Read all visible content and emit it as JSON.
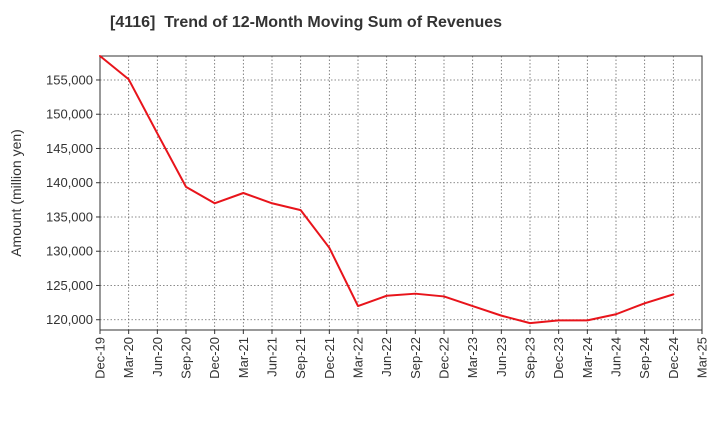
{
  "chart_data": {
    "type": "line",
    "title": "[4116]  Trend of 12-Month Moving Sum of Revenues",
    "xlabel": "",
    "ylabel": "Amount (million yen)",
    "ylim": [
      118500,
      158500
    ],
    "yticks": [
      120000,
      125000,
      130000,
      135000,
      140000,
      145000,
      150000,
      155000
    ],
    "ytick_labels": [
      "120,000",
      "125,000",
      "130,000",
      "135,000",
      "140,000",
      "145,000",
      "150,000",
      "155,000"
    ],
    "categories": [
      "Dec-19",
      "Mar-20",
      "Jun-20",
      "Sep-20",
      "Dec-20",
      "Mar-21",
      "Jun-21",
      "Sep-21",
      "Dec-21",
      "Mar-22",
      "Jun-22",
      "Sep-22",
      "Dec-22",
      "Mar-23",
      "Jun-23",
      "Sep-23",
      "Dec-23",
      "Mar-24",
      "Jun-24",
      "Sep-24",
      "Dec-24",
      "Mar-25"
    ],
    "series": [
      {
        "color": "#e8141b",
        "values": [
          158500,
          155100,
          147200,
          139400,
          137000,
          138500,
          137000,
          136000,
          130500,
          122000,
          123500,
          123800,
          123400,
          122000,
          120600,
          119500,
          119900,
          119900,
          120800,
          122400,
          123700,
          null
        ]
      }
    ],
    "grid": true,
    "grid_style": "dotted",
    "legend": "none"
  }
}
